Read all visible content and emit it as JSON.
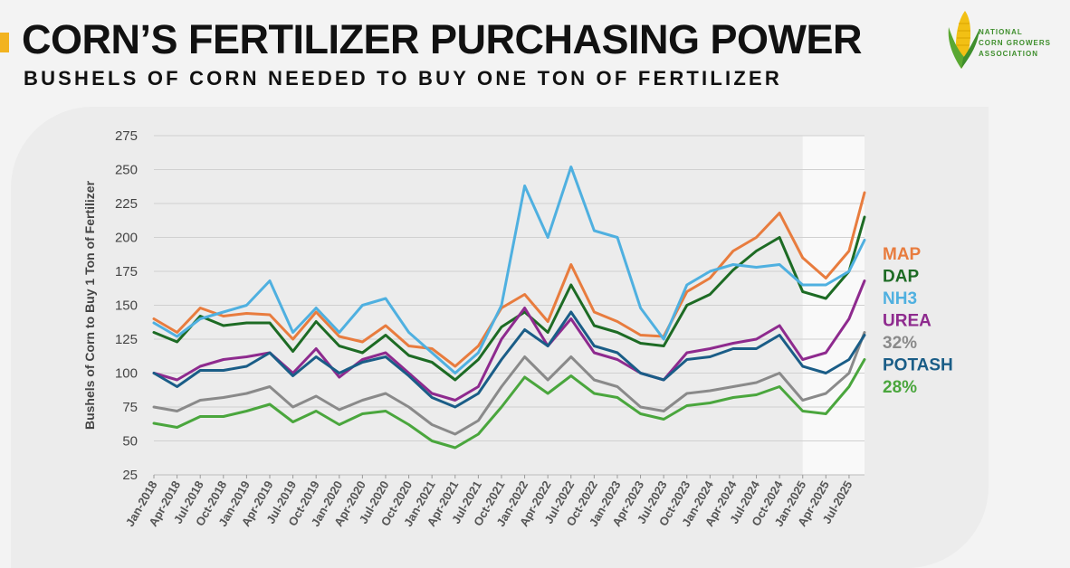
{
  "header": {
    "title": "CORN’S FERTILIZER PURCHASING POWER",
    "subtitle": "BUSHELS OF CORN NEEDED TO BUY ONE TON OF FERTILIZER"
  },
  "logo": {
    "line1": "NATIONAL",
    "line2": "CORN GROWERS",
    "line3": "ASSOCIATION",
    "icon": "corn-cob-icon",
    "color": "#3e8e2c"
  },
  "chart_data": {
    "type": "line",
    "title": "",
    "xlabel": "",
    "ylabel": "Bushels of Corn to Buy 1 Ton of Fertilizer",
    "ylim": [
      25,
      275
    ],
    "yticks": [
      25,
      50,
      75,
      100,
      125,
      150,
      175,
      200,
      225,
      250,
      275
    ],
    "grid": true,
    "legend_placement": "right",
    "x_tick_labels": [
      "Jan-2018",
      "Apr-2018",
      "Jul-2018",
      "Oct-2018",
      "Jan-2019",
      "Apr-2019",
      "Jul-2019",
      "Oct-2019",
      "Jan-2020",
      "Apr-2020",
      "Jul-2020",
      "Oct-2020",
      "Jan-2021",
      "Apr-2021",
      "Jul-2021",
      "Oct-2021",
      "Jan-2022",
      "Apr-2022",
      "Jul-2022",
      "Oct-2022",
      "Jan-2023",
      "Apr-2023",
      "Jul-2023",
      "Oct-2023",
      "Jan-2024",
      "Apr-2024",
      "Jul-2024",
      "Oct-2024",
      "Jan-2025",
      "Apr-2025",
      "Jul-2025"
    ],
    "highlight_from": "Jan-2025",
    "x": [
      "Jan-2018",
      "Apr-2018",
      "Jul-2018",
      "Oct-2018",
      "Jan-2019",
      "Apr-2019",
      "Jul-2019",
      "Oct-2019",
      "Jan-2020",
      "Apr-2020",
      "Jul-2020",
      "Oct-2020",
      "Jan-2021",
      "Apr-2021",
      "Jul-2021",
      "Oct-2021",
      "Jan-2022",
      "Apr-2022",
      "Jul-2022",
      "Oct-2022",
      "Jan-2023",
      "Apr-2023",
      "Jul-2023",
      "Oct-2023",
      "Jan-2024",
      "Apr-2024",
      "Jul-2024",
      "Oct-2024",
      "Jan-2025",
      "Apr-2025",
      "Jul-2025",
      "Sep-2025"
    ],
    "series": [
      {
        "name": "MAP",
        "color": "#e87c3e",
        "values": [
          140,
          130,
          148,
          142,
          144,
          143,
          125,
          145,
          127,
          123,
          135,
          120,
          118,
          105,
          120,
          148,
          158,
          138,
          180,
          145,
          138,
          128,
          127,
          160,
          170,
          190,
          200,
          218,
          185,
          170,
          190,
          233
        ]
      },
      {
        "name": "DAP",
        "color": "#1d6b24",
        "values": [
          130,
          123,
          142,
          135,
          137,
          137,
          116,
          138,
          120,
          115,
          128,
          113,
          108,
          95,
          110,
          134,
          145,
          130,
          165,
          135,
          130,
          122,
          120,
          150,
          158,
          176,
          190,
          200,
          160,
          155,
          175,
          215
        ]
      },
      {
        "name": "NH3",
        "color": "#4fb0e0",
        "values": [
          137,
          127,
          140,
          145,
          150,
          168,
          130,
          148,
          130,
          150,
          155,
          130,
          115,
          100,
          115,
          150,
          238,
          200,
          252,
          205,
          200,
          148,
          125,
          165,
          175,
          180,
          178,
          180,
          165,
          165,
          175,
          198
        ]
      },
      {
        "name": "UREA",
        "color": "#8e2a8e",
        "values": [
          100,
          95,
          105,
          110,
          112,
          115,
          100,
          118,
          97,
          110,
          115,
          100,
          85,
          80,
          90,
          125,
          148,
          120,
          140,
          115,
          110,
          100,
          95,
          115,
          118,
          122,
          125,
          135,
          110,
          115,
          140,
          168
        ]
      },
      {
        "name": "32%",
        "color": "#8a8a8a",
        "values": [
          75,
          72,
          80,
          82,
          85,
          90,
          75,
          83,
          73,
          80,
          85,
          75,
          62,
          55,
          65,
          90,
          112,
          95,
          112,
          95,
          90,
          75,
          72,
          85,
          87,
          90,
          93,
          100,
          80,
          85,
          100,
          130
        ]
      },
      {
        "name": "POTASH",
        "color": "#1a5d87",
        "values": [
          100,
          90,
          102,
          102,
          105,
          115,
          98,
          112,
          100,
          108,
          112,
          98,
          82,
          75,
          85,
          110,
          132,
          120,
          145,
          120,
          115,
          100,
          95,
          110,
          112,
          118,
          118,
          128,
          105,
          100,
          110,
          128
        ]
      },
      {
        "name": "28%",
        "color": "#4aa63d",
        "values": [
          63,
          60,
          68,
          68,
          72,
          77,
          64,
          72,
          62,
          70,
          72,
          62,
          50,
          45,
          55,
          75,
          97,
          85,
          98,
          85,
          82,
          70,
          66,
          76,
          78,
          82,
          84,
          90,
          72,
          70,
          90,
          110
        ]
      }
    ]
  }
}
